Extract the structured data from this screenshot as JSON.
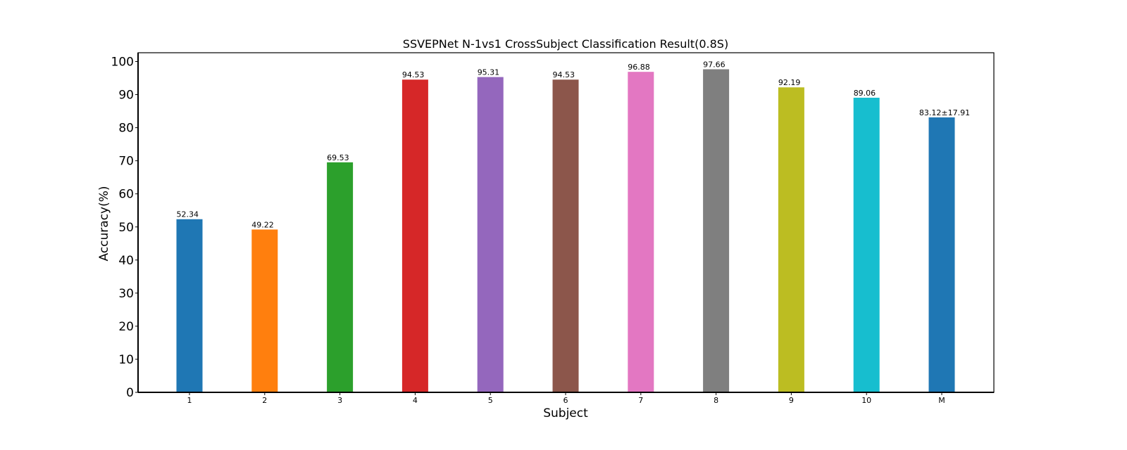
{
  "chart_data": {
    "type": "bar",
    "title": "SSVEPNet N-1vs1 CrossSubject Classification Result(0.8S)",
    "xlabel": "Subject",
    "ylabel": "Accuracy(%)",
    "ylim": [
      0,
      102.5
    ],
    "yticks": [
      0,
      10,
      20,
      30,
      40,
      50,
      60,
      70,
      80,
      90,
      100
    ],
    "grid": false,
    "categories": [
      "1",
      "2",
      "3",
      "4",
      "5",
      "6",
      "7",
      "8",
      "9",
      "10",
      "M"
    ],
    "values": [
      52.34,
      49.22,
      69.53,
      94.53,
      95.31,
      94.53,
      96.88,
      97.66,
      92.19,
      89.06,
      83.12
    ],
    "value_labels": [
      "52.34",
      "49.22",
      "69.53",
      "94.53",
      "95.31",
      "94.53",
      "96.88",
      "97.66",
      "92.19",
      "89.06",
      "83.12±17.91"
    ],
    "colors": [
      "#1f77b4",
      "#ff7f0e",
      "#2ca02c",
      "#d62728",
      "#9467bd",
      "#8c564b",
      "#e377c2",
      "#7f7f7f",
      "#bcbd22",
      "#17becf",
      "#1f77b4"
    ],
    "label_colors": [
      "#000000",
      "#000000",
      "#000000",
      "#000000",
      "#000000",
      "#000000",
      "#000000",
      "#000000",
      "#000000",
      "#000000",
      "#ff0000"
    ]
  }
}
